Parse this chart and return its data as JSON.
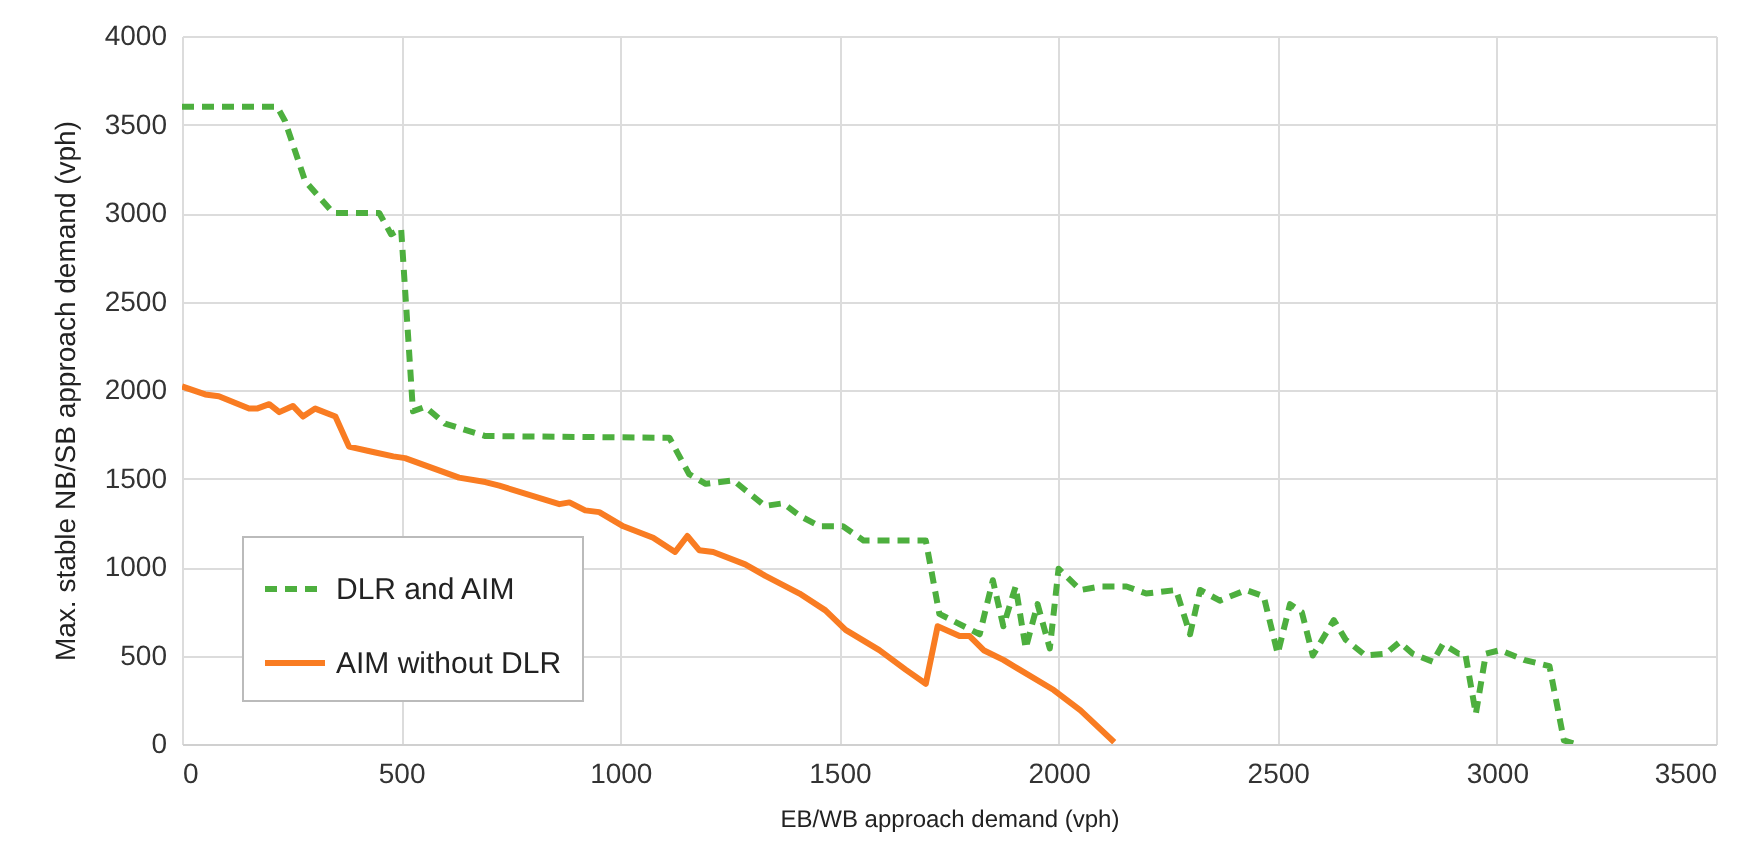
{
  "chart_data": {
    "type": "line",
    "xlabel": "EB/WB approach demand (vph)",
    "ylabel": "Max. stable NB/SB approach demand (vph)",
    "xlim": [
      0,
      3500
    ],
    "xticks": [
      0,
      500,
      1000,
      1500,
      2000,
      2500,
      3000,
      3500
    ],
    "ylim": [
      0,
      4000
    ],
    "yticks": [
      0,
      500,
      1000,
      1500,
      2000,
      2500,
      3000,
      3500,
      4000
    ],
    "grid": true,
    "legend": "bottom left",
    "marker": "none",
    "series": [
      {
        "name": "DLR and AIM",
        "color": "#4daf3e",
        "line_style": "dashed",
        "x": [
          0,
          217,
          235,
          281,
          345,
          450,
          477,
          500,
          527,
          555,
          600,
          692,
          1112,
          1157,
          1195,
          1258,
          1285,
          1330,
          1372,
          1409,
          1455,
          1508,
          1555,
          1697,
          1728,
          1820,
          1850,
          1874,
          1902,
          1925,
          1952,
          1980,
          2000,
          2050,
          2095,
          2155,
          2200,
          2268,
          2300,
          2323,
          2368,
          2428,
          2468,
          2500,
          2528,
          2555,
          2580,
          2628,
          2655,
          2700,
          2746,
          2778,
          2808,
          2854,
          2877,
          2913,
          2928,
          2952,
          2975,
          3007,
          3062,
          3120,
          3153,
          3180
        ],
        "values": [
          3600,
          3600,
          3520,
          3180,
          3000,
          3000,
          2880,
          2910,
          1880,
          1905,
          1810,
          1740,
          1730,
          1525,
          1470,
          1490,
          1435,
          1345,
          1360,
          1290,
          1230,
          1230,
          1150,
          1150,
          735,
          620,
          925,
          665,
          890,
          540,
          790,
          540,
          990,
          870,
          890,
          890,
          850,
          870,
          620,
          870,
          810,
          870,
          835,
          510,
          790,
          745,
          500,
          700,
          590,
          500,
          510,
          575,
          510,
          465,
          565,
          510,
          510,
          170,
          510,
          530,
          475,
          440,
          20,
          0
        ]
      },
      {
        "name": "AIM without DLR",
        "color": "#f97c22",
        "line_style": "solid",
        "x": [
          0,
          53,
          84,
          153,
          171,
          199,
          222,
          253,
          276,
          304,
          350,
          381,
          436,
          482,
          509,
          632,
          692,
          724,
          861,
          884,
          920,
          952,
          1007,
          1075,
          1125,
          1153,
          1180,
          1212,
          1285,
          1331,
          1409,
          1468,
          1514,
          1591,
          1651,
          1697,
          1724,
          1774,
          1797,
          1829,
          1874,
          1911,
          1989,
          2050,
          2127
        ],
        "values": [
          2020,
          1975,
          1965,
          1895,
          1895,
          1920,
          1875,
          1910,
          1850,
          1895,
          1850,
          1680,
          1650,
          1625,
          1615,
          1505,
          1480,
          1460,
          1355,
          1365,
          1320,
          1310,
          1230,
          1165,
          1085,
          1175,
          1095,
          1085,
          1015,
          950,
          850,
          755,
          645,
          530,
          420,
          340,
          665,
          610,
          610,
          530,
          475,
          420,
          305,
          190,
          10
        ]
      }
    ]
  }
}
